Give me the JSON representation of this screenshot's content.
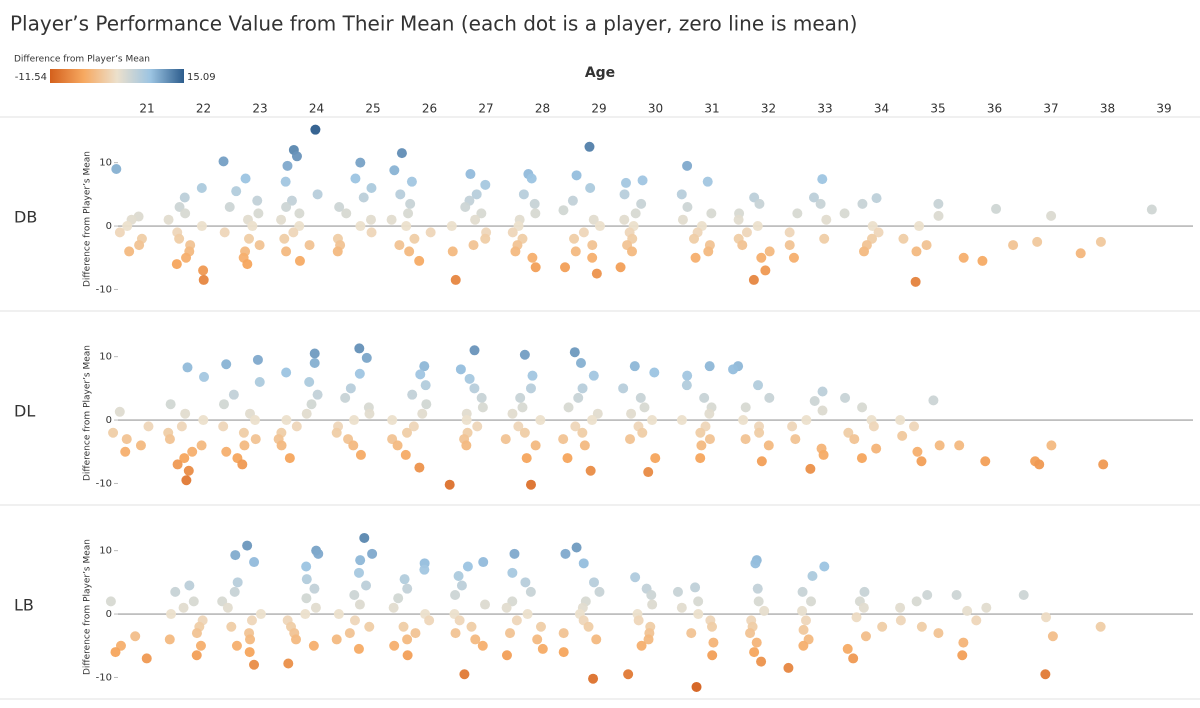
{
  "chart_data": {
    "type": "strip",
    "title": "Player’s Performance Value from Their Mean (each dot is a player, zero line is mean)",
    "legend_title": "Difference from Player’s Mean",
    "color_range": [
      -11.54,
      15.09
    ],
    "colors": [
      "#d4601c",
      "#f6a860",
      "#ece0cc",
      "#9cc4e2",
      "#2c5c8c"
    ],
    "x_label": "Age",
    "categories": [
      "21",
      "22",
      "23",
      "24",
      "25",
      "26",
      "27",
      "28",
      "29",
      "30",
      "31",
      "32",
      "33",
      "34",
      "35",
      "36",
      "37",
      "38",
      "39"
    ],
    "panels": [
      {
        "name": "DB",
        "y_label": "Difference from Player’s Mean",
        "ylim": [
          -13.4,
          17.2
        ],
        "yticks": [
          -10,
          0,
          10
        ],
        "values": [
          [
            9,
            1.5,
            1,
            0,
            -1,
            -2,
            -3,
            -4
          ],
          [
            6,
            4.5,
            3,
            2,
            1,
            0,
            -1,
            -2,
            -3,
            -4,
            -5,
            -6,
            -7,
            -8.5
          ],
          [
            7.5,
            10.2,
            5.5,
            4,
            3,
            2,
            1,
            0,
            -1,
            -2,
            -3,
            -4,
            -5,
            -6
          ],
          [
            12,
            15.2,
            11,
            9.5,
            7,
            5,
            4,
            3,
            2,
            1,
            0,
            -1,
            -2,
            -3,
            -4,
            -5.5
          ],
          [
            10,
            7.5,
            6,
            4.5,
            3,
            2,
            1,
            0,
            -1,
            -2,
            -3,
            -4
          ],
          [
            11.5,
            8.8,
            7,
            5,
            3.5,
            2,
            1,
            0,
            -1,
            -2,
            -3,
            -4,
            -5.5
          ],
          [
            8.2,
            6.5,
            5,
            4,
            3,
            2,
            1,
            0,
            -1,
            -2,
            -3,
            -4,
            -8.5
          ],
          [
            8.2,
            7.5,
            5,
            3.5,
            2,
            1,
            0,
            -1,
            -2,
            -3,
            -4,
            -5,
            -6.5
          ],
          [
            12.5,
            8,
            6,
            4,
            2.5,
            1,
            0,
            -1,
            -2,
            -3,
            -4,
            -5,
            -6.5,
            -7.5
          ],
          [
            7.2,
            6.8,
            5,
            3.5,
            2,
            1,
            0,
            -1,
            -2,
            -3,
            -4,
            -6.5
          ],
          [
            9.5,
            7,
            5,
            3,
            2,
            1,
            0,
            -1,
            -2,
            -3,
            -4,
            -5
          ],
          [
            4.5,
            3.5,
            2,
            1,
            0,
            -1,
            -2,
            -3,
            -4,
            -5,
            -7,
            -8.5
          ],
          [
            7.4,
            4.5,
            3.5,
            2,
            1,
            -1,
            -2,
            -3,
            -5
          ],
          [
            4.4,
            3.5,
            2,
            0,
            -1,
            -2,
            -3,
            -4
          ],
          [
            3.5,
            1.6,
            0,
            -2,
            -3,
            -4,
            -8.8
          ],
          [
            2.7,
            -5,
            -5.5
          ],
          [
            1.6,
            -2.5,
            -3
          ],
          [
            -2.5,
            -4.3
          ],
          [
            2.6
          ]
        ]
      },
      {
        "name": "DL",
        "y_label": "Difference from Player’s Mean",
        "ylim": [
          -13.4,
          17.2
        ],
        "yticks": [
          -10,
          0,
          10
        ],
        "values": [
          [
            1.3,
            -1,
            -2,
            -3,
            -4,
            -5
          ],
          [
            8.3,
            6.8,
            2.5,
            1,
            0,
            -1,
            -2,
            -3,
            -4,
            -5,
            -6,
            -7,
            -8,
            -9.5
          ],
          [
            9.5,
            8.8,
            6,
            4,
            2.5,
            1,
            0,
            -1,
            -2,
            -3,
            -4,
            -5,
            -6,
            -7
          ],
          [
            10.5,
            9,
            7.5,
            6,
            4,
            2.5,
            1,
            0,
            -1,
            -2,
            -3,
            -4,
            -6
          ],
          [
            11.3,
            9.8,
            7.3,
            5,
            3.5,
            2,
            1,
            0,
            -1,
            -2,
            -3,
            -4,
            -5.5
          ],
          [
            8.5,
            7.2,
            5.5,
            4,
            2.5,
            1,
            0,
            -1,
            -2,
            -3,
            -4,
            -5.5,
            -7.5
          ],
          [
            11,
            8,
            6.5,
            5,
            3.5,
            2,
            1,
            0,
            -1,
            -2,
            -3,
            -4,
            -10.2
          ],
          [
            10.3,
            7,
            5,
            3.5,
            2,
            1,
            0,
            -1,
            -2,
            -3,
            -4,
            -6,
            -10.2
          ],
          [
            10.7,
            9,
            7,
            5,
            3.5,
            2,
            1,
            0,
            -1,
            -2,
            -3,
            -4,
            -6,
            -8
          ],
          [
            8.5,
            7.5,
            5,
            3.5,
            2,
            1,
            0,
            -1,
            -2,
            -3,
            -6,
            -8.2
          ],
          [
            8.5,
            7,
            5.5,
            3.5,
            2,
            1,
            0,
            -1,
            -2,
            -3,
            -4,
            -6
          ],
          [
            8.5,
            8,
            5.5,
            3.5,
            2,
            0,
            -1,
            -2,
            -3,
            -4,
            -6.5
          ],
          [
            4.5,
            3,
            1.5,
            0,
            -1,
            -3,
            -4.5,
            -5.5,
            -7.7
          ],
          [
            3.5,
            2,
            0,
            -1,
            -2,
            -3,
            -4.5,
            -6
          ],
          [
            3.1,
            0,
            -1,
            -2.5,
            -4,
            -5,
            -6.5
          ],
          [
            -4,
            -6.5
          ],
          [
            -4,
            -6.5,
            -7
          ],
          [
            -7
          ],
          []
        ]
      },
      {
        "name": "LB",
        "y_label": "Difference from Player’s Mean",
        "ylim": [
          -13.4,
          17.2
        ],
        "yticks": [
          -10,
          0,
          10
        ],
        "values": [
          [
            2,
            -3.5,
            -5,
            -6,
            -7
          ],
          [
            4.5,
            3.5,
            2,
            1,
            0,
            -1,
            -2,
            -3,
            -4,
            -5,
            -6.5
          ],
          [
            10.8,
            9.3,
            8.2,
            5,
            3.5,
            2,
            1,
            0,
            -1,
            -2,
            -3,
            -4,
            -5,
            -6,
            -8
          ],
          [
            10,
            9.5,
            7.5,
            5.5,
            4,
            2.5,
            1,
            0,
            -1,
            -2,
            -3,
            -4,
            -5,
            -7.8
          ],
          [
            12,
            9.5,
            8.5,
            6.5,
            4.5,
            3,
            1.5,
            0,
            -1,
            -2,
            -3,
            -4,
            -5.5
          ],
          [
            8,
            7,
            5.5,
            4,
            2.5,
            1,
            0,
            -1,
            -2,
            -3,
            -4,
            -5,
            -6.5
          ],
          [
            8.2,
            7.5,
            6,
            4.5,
            3,
            1.5,
            0,
            -1,
            -2,
            -3,
            -4,
            -5,
            -9.5
          ],
          [
            9.5,
            6.5,
            5,
            3.5,
            2,
            1,
            0,
            -1,
            -2,
            -3,
            -4,
            -5.5,
            -6.5
          ],
          [
            10.5,
            9.5,
            8,
            5,
            3.5,
            2,
            1,
            0,
            -1,
            -2,
            -3,
            -4,
            -6,
            -10.2
          ],
          [
            5.8,
            4,
            3,
            1.5,
            0,
            -1,
            -2,
            -3,
            -4,
            -5,
            -9.5
          ],
          [
            4.2,
            3.5,
            2,
            1,
            0,
            -1,
            -2,
            -3,
            -4.5,
            -6.5,
            -11.5
          ],
          [
            8.5,
            8,
            4,
            2,
            0.5,
            -1,
            -2,
            -3,
            -4.5,
            -6,
            -7.5
          ],
          [
            7.5,
            6,
            3.5,
            2,
            0.5,
            -1,
            -2.5,
            -4,
            -5,
            -8.5
          ],
          [
            3.5,
            2,
            1,
            -0.5,
            -2,
            -3.5,
            -5.5,
            -7
          ],
          [
            3,
            2,
            1,
            -1,
            -2,
            -3
          ],
          [
            3,
            1,
            0.5,
            -1,
            -4.5,
            -6.5
          ],
          [
            3,
            -0.5,
            -3.5,
            -9.5
          ],
          [
            -2
          ],
          []
        ]
      }
    ]
  }
}
